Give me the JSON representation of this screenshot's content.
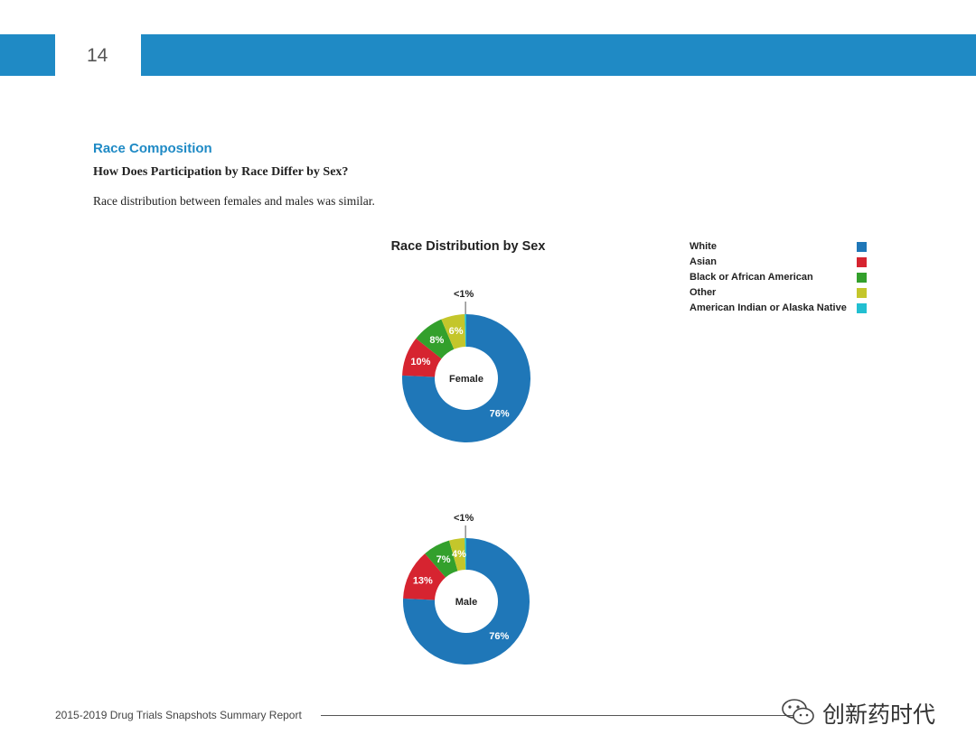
{
  "header": {
    "page_number": "14"
  },
  "section": {
    "title": "Race Composition",
    "question": "How Does Participation by Race Differ by Sex?",
    "body": "Race distribution between females and males was similar."
  },
  "legend": [
    {
      "label": "White",
      "color": "#1f77b8"
    },
    {
      "label": "Asian",
      "color": "#d62430"
    },
    {
      "label": "Black or African American",
      "color": "#33a02c"
    },
    {
      "label": "Other",
      "color": "#c4c62b"
    },
    {
      "label": "American Indian or Alaska Native",
      "color": "#22bfd1"
    }
  ],
  "chart_data": {
    "type": "pie",
    "title": "Race Distribution by Sex",
    "categories": [
      "White",
      "Asian",
      "Black or African American",
      "Other",
      "American Indian or Alaska Native"
    ],
    "series": [
      {
        "name": "Female",
        "values": [
          76,
          10,
          8,
          6,
          0.4
        ],
        "labels": [
          "76%",
          "10%",
          "8%",
          "6%",
          "<1%"
        ]
      },
      {
        "name": "Male",
        "values": [
          76,
          13,
          7,
          4,
          0.4
        ],
        "labels": [
          "76%",
          "13%",
          "7%",
          "4%",
          "<1%"
        ]
      }
    ]
  },
  "footer": {
    "report_title": "2015-2019 Drug Trials Snapshots Summary Report",
    "watermark_text": "创新药时代"
  }
}
